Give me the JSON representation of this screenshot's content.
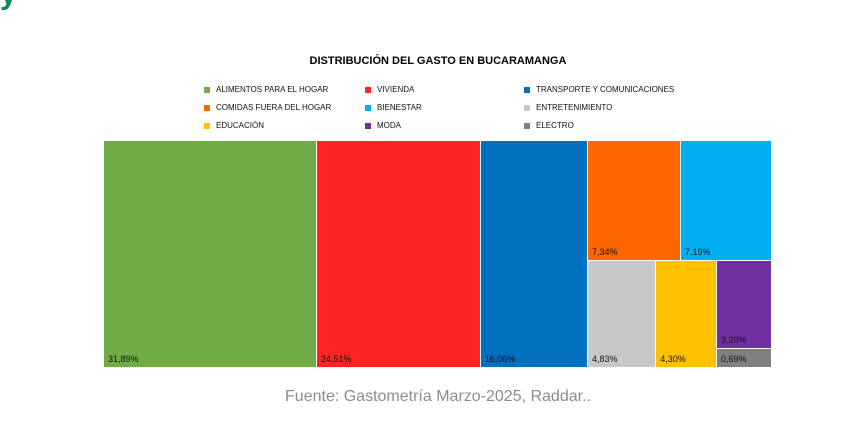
{
  "header": {
    "partial_title": "y"
  },
  "chart_data": {
    "type": "treemap",
    "title": "DISTRIBUCIÓN DEL GASTO EN BUCARAMANGA",
    "legend_placement": "top",
    "series": [
      {
        "name": "ALIMENTOS PARA EL HOGAR",
        "value": 31.89,
        "label": "31,89%",
        "color": "#70ad47"
      },
      {
        "name": "VIVIENDA",
        "value": 24.51,
        "label": "24,51%",
        "color": "#ff2323"
      },
      {
        "name": "TRANSPORTE Y COMUNICACIONES",
        "value": 16.06,
        "label": "16,06%",
        "color": "#0070c0"
      },
      {
        "name": "COMIDAS FUERA DEL HOGAR",
        "value": 7.34,
        "label": "7,34%",
        "color": "#ff6600"
      },
      {
        "name": "BIENESTAR",
        "value": 7.19,
        "label": "7,19%",
        "color": "#00b0f0"
      },
      {
        "name": "ENTRETENIMIENTO",
        "value": 4.83,
        "label": "4,83%",
        "color": "#c8c8c8"
      },
      {
        "name": "EDUCACIÓN",
        "value": 4.3,
        "label": "4,30%",
        "color": "#ffc000"
      },
      {
        "name": "MODA",
        "value": 3.2,
        "label": "3,20%",
        "color": "#7030a0"
      },
      {
        "name": "ELECTRO",
        "value": 0.69,
        "label": "0,69%",
        "color": "#808080"
      }
    ]
  },
  "source": "Fuente: Gastometría Marzo-2025, Raddar.."
}
